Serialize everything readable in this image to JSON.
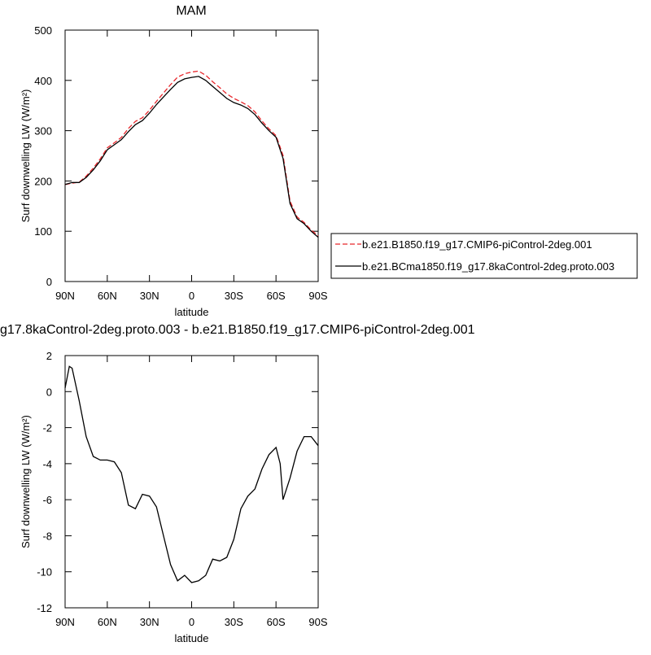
{
  "chart_data": [
    {
      "type": "line",
      "title": "MAM",
      "xlabel": "latitude",
      "ylabel": "Surf downwelling LW (W/m²)",
      "x": [
        90,
        85,
        80,
        75,
        70,
        65,
        60,
        55,
        50,
        45,
        40,
        35,
        30,
        25,
        20,
        15,
        10,
        5,
        0,
        -5,
        -10,
        -15,
        -20,
        -25,
        -30,
        -35,
        -40,
        -45,
        -50,
        -55,
        -60,
        -65,
        -70,
        -75,
        -80,
        -85,
        -90
      ],
      "xlim": [
        90,
        -90
      ],
      "xticks": [
        {
          "value": 90,
          "label": "90N"
        },
        {
          "value": 60,
          "label": "60N"
        },
        {
          "value": 30,
          "label": "30N"
        },
        0,
        {
          "value": -30,
          "label": "30S"
        },
        {
          "value": -60,
          "label": "60S"
        },
        {
          "value": -90,
          "label": "90S"
        }
      ],
      "ylim": [
        0,
        500
      ],
      "yticks": [
        0,
        100,
        200,
        300,
        400,
        500
      ],
      "series": [
        {
          "name": "b.e21.B1850.f19_g17.CMIP6-piControl-2deg.001",
          "color": "#e8262b",
          "dash": true,
          "values": [
            192.8,
            195.7,
            197.5,
            209.5,
            225.6,
            243.8,
            265.8,
            275.9,
            286.5,
            304.3,
            318.5,
            325.7,
            340.8,
            358.4,
            375,
            391.6,
            406.5,
            413.2,
            416.6,
            418.5,
            410.2,
            397.3,
            385.4,
            373.2,
            364.2,
            357.5,
            349.8,
            337.4,
            319.3,
            303.5,
            290.1,
            251,
            159.8,
            128.3,
            117.5,
            102.5,
            91
          ]
        },
        {
          "name": "b.e21.BCma1850.f19_g17.8kaControl-2deg.proto.003",
          "color": "#000000",
          "dash": false,
          "values": [
            193,
            197,
            197,
            207,
            222,
            240,
            262,
            272,
            282,
            298,
            312,
            320,
            335,
            352,
            367,
            382,
            396,
            403,
            406,
            408,
            400,
            388,
            376,
            364,
            356,
            351,
            344,
            332,
            315,
            300,
            287,
            245,
            155,
            125,
            115,
            100,
            88
          ]
        }
      ]
    },
    {
      "type": "line",
      "title": "g17.8kaControl-2deg.proto.003 - b.e21.B1850.f19_g17.CMIP6-piControl-2deg.001",
      "xlabel": "latitude",
      "ylabel": "Surf downwelling LW (W/m²)",
      "x": [
        90,
        87,
        85,
        80,
        75,
        70,
        65,
        60,
        55,
        50,
        45,
        40,
        35,
        30,
        25,
        20,
        15,
        10,
        5,
        0,
        -5,
        -10,
        -15,
        -20,
        -25,
        -30,
        -35,
        -40,
        -45,
        -50,
        -55,
        -60,
        -63,
        -65,
        -70,
        -75,
        -80,
        -85,
        -90
      ],
      "xlim": [
        90,
        -90
      ],
      "xticks": [
        {
          "value": 90,
          "label": "90N"
        },
        {
          "value": 60,
          "label": "60N"
        },
        {
          "value": 30,
          "label": "30N"
        },
        0,
        {
          "value": -30,
          "label": "30S"
        },
        {
          "value": -60,
          "label": "60S"
        },
        {
          "value": -90,
          "label": "90S"
        }
      ],
      "ylim": [
        -12,
        2
      ],
      "yticks": [
        -12,
        -10,
        -8,
        -6,
        -4,
        -2,
        0,
        2
      ],
      "series": [
        {
          "color": "#000000",
          "dash": false,
          "values": [
            0.2,
            1.4,
            1.3,
            -0.5,
            -2.5,
            -3.6,
            -3.8,
            -3.8,
            -3.9,
            -4.5,
            -6.3,
            -6.5,
            -5.7,
            -5.8,
            -6.4,
            -8.0,
            -9.6,
            -10.5,
            -10.2,
            -10.6,
            -10.5,
            -10.2,
            -9.3,
            -9.4,
            -9.2,
            -8.2,
            -6.5,
            -5.8,
            -5.4,
            -4.3,
            -3.5,
            -3.1,
            -4.0,
            -6.0,
            -4.8,
            -3.3,
            -2.5,
            -2.5,
            -3.0
          ]
        }
      ]
    }
  ]
}
